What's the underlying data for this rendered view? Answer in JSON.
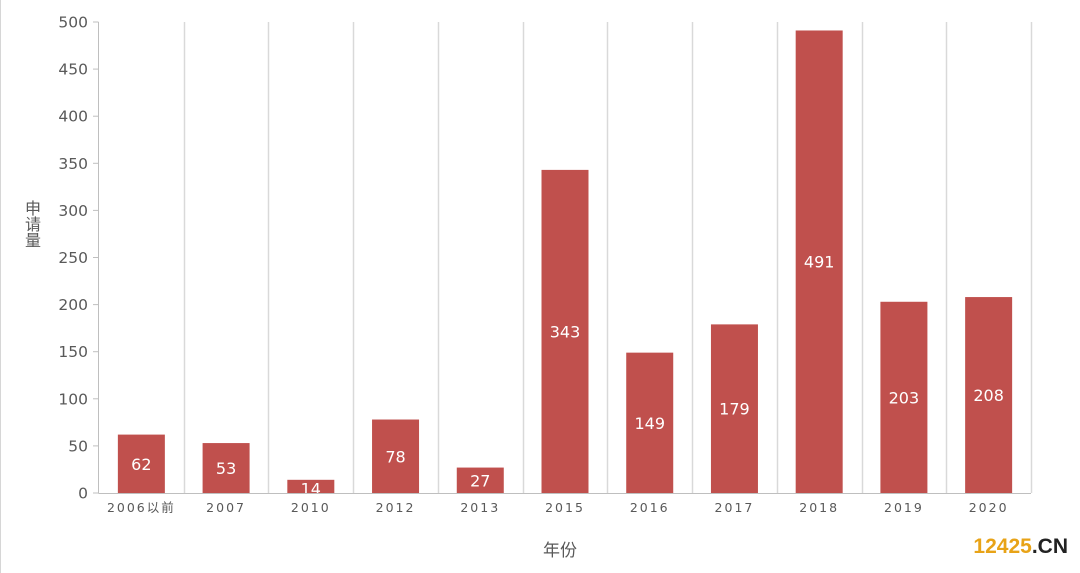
{
  "chart_data": {
    "type": "bar",
    "title": "",
    "xlabel": "年份",
    "ylabel": "申请量",
    "categories": [
      "2006以前",
      "2007",
      "2010",
      "2012",
      "2013",
      "2015",
      "2016",
      "2017",
      "2018",
      "2019",
      "2020"
    ],
    "values": [
      62,
      53,
      14,
      78,
      27,
      343,
      149,
      179,
      491,
      203,
      208
    ],
    "ylim": [
      0,
      500
    ],
    "yticks": [
      0,
      50,
      100,
      150,
      200,
      250,
      300,
      350,
      400,
      450,
      500
    ],
    "grid": "vertical",
    "bar_color": "#c0504d",
    "label_color": "#ffffff"
  },
  "watermark": {
    "number": "12425",
    "dot": ".",
    "suffix": "CN"
  }
}
